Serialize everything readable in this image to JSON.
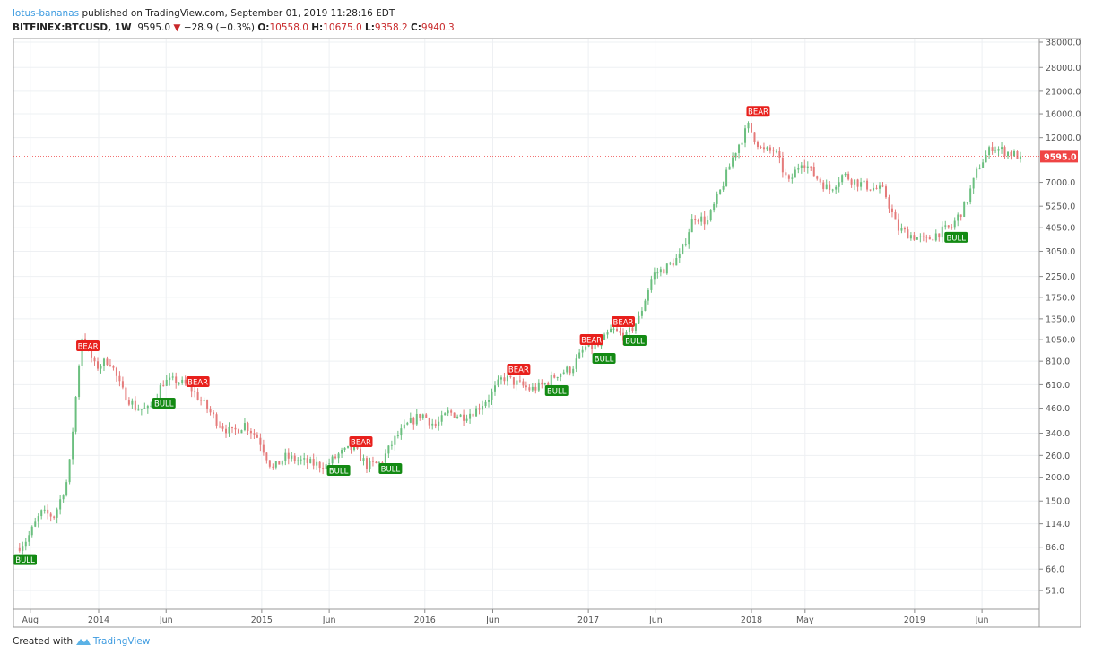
{
  "header": {
    "author": "lotus-bananas",
    "published_text": "published on TradingView.com, September 01, 2019 11:28:16 EDT",
    "symbol": "BITFINEX:BTCUSD, 1W",
    "last": "9595.0",
    "change": "−28.9 (−0.3%)",
    "o_label": "O:",
    "o": "10558.0",
    "h_label": "H:",
    "h": "10675.0",
    "l_label": "L:",
    "l": "9358.2",
    "c_label": "C:",
    "c": "9940.3",
    "down_color": "#c8282a"
  },
  "footer": {
    "created_with": "Created with",
    "brand": "TradingView"
  },
  "chart_data": {
    "type": "candlestick",
    "interval": "weekly",
    "y_scale": "log",
    "ylim": [
      45,
      40000
    ],
    "grid": true,
    "y_ticks": [
      "38000.0",
      "28000.0",
      "21000.0",
      "16000.0",
      "12000.0",
      "7000.0",
      "5250.0",
      "4050.0",
      "3050.0",
      "2250.0",
      "1750.0",
      "1350.0",
      "1050.0",
      "810.0",
      "610.0",
      "460.0",
      "340.0",
      "260.0",
      "200.0",
      "150.0",
      "114.0",
      "86.0",
      "66.0",
      "51.0"
    ],
    "x_ticks": [
      {
        "label": "Aug",
        "date": "2013-08-01"
      },
      {
        "label": "2014",
        "date": "2014-01-01"
      },
      {
        "label": "Jun",
        "date": "2014-06-01"
      },
      {
        "label": "2015",
        "date": "2015-01-01"
      },
      {
        "label": "Jun",
        "date": "2015-06-01"
      },
      {
        "label": "2016",
        "date": "2016-01-01"
      },
      {
        "label": "Jun",
        "date": "2016-06-01"
      },
      {
        "label": "2017",
        "date": "2017-01-01"
      },
      {
        "label": "Jun",
        "date": "2017-06-01"
      },
      {
        "label": "2018",
        "date": "2018-01-01"
      },
      {
        "label": "May",
        "date": "2018-05-01"
      },
      {
        "label": "2019",
        "date": "2019-01-01"
      },
      {
        "label": "Jun",
        "date": "2019-06-01"
      }
    ],
    "last_price": 9595.0,
    "last_price_label": "9595.0",
    "colors": {
      "up": "#6bbf7f",
      "down": "#e57b7b",
      "bull": "#138a13",
      "bear": "#e8201c",
      "last": "#ef4444"
    },
    "monthly_closes": [
      [
        "2013-07",
        95
      ],
      [
        "2013-08",
        130
      ],
      [
        "2013-09",
        125
      ],
      [
        "2013-10",
        200
      ],
      [
        "2013-11",
        1100
      ],
      [
        "2013-12",
        750
      ],
      [
        "2014-01",
        830
      ],
      [
        "2014-02",
        570
      ],
      [
        "2014-03",
        460
      ],
      [
        "2014-04",
        450
      ],
      [
        "2014-05",
        630
      ],
      [
        "2014-06",
        640
      ],
      [
        "2014-07",
        590
      ],
      [
        "2014-08",
        480
      ],
      [
        "2014-09",
        390
      ],
      [
        "2014-10",
        340
      ],
      [
        "2014-11",
        380
      ],
      [
        "2014-12",
        320
      ],
      [
        "2015-01",
        220
      ],
      [
        "2015-02",
        255
      ],
      [
        "2015-03",
        245
      ],
      [
        "2015-04",
        235
      ],
      [
        "2015-05",
        230
      ],
      [
        "2015-06",
        265
      ],
      [
        "2015-07",
        285
      ],
      [
        "2015-08",
        230
      ],
      [
        "2015-09",
        236
      ],
      [
        "2015-10",
        315
      ],
      [
        "2015-11",
        378
      ],
      [
        "2015-12",
        430
      ],
      [
        "2016-01",
        370
      ],
      [
        "2016-02",
        437
      ],
      [
        "2016-03",
        416
      ],
      [
        "2016-04",
        450
      ],
      [
        "2016-05",
        530
      ],
      [
        "2016-06",
        670
      ],
      [
        "2016-07",
        620
      ],
      [
        "2016-08",
        575
      ],
      [
        "2016-09",
        610
      ],
      [
        "2016-10",
        700
      ],
      [
        "2016-11",
        740
      ],
      [
        "2016-12",
        960
      ],
      [
        "2017-01",
        970
      ],
      [
        "2017-02",
        1190
      ],
      [
        "2017-03",
        1080
      ],
      [
        "2017-04",
        1350
      ],
      [
        "2017-05",
        2300
      ],
      [
        "2017-06",
        2500
      ],
      [
        "2017-07",
        2870
      ],
      [
        "2017-08",
        4700
      ],
      [
        "2017-09",
        4340
      ],
      [
        "2017-10",
        6450
      ],
      [
        "2017-11",
        10000
      ],
      [
        "2017-12",
        13800
      ],
      [
        "2018-01",
        10200
      ],
      [
        "2018-02",
        10300
      ],
      [
        "2018-03",
        6900
      ],
      [
        "2018-04",
        9200
      ],
      [
        "2018-05",
        7500
      ],
      [
        "2018-06",
        6400
      ],
      [
        "2018-07",
        7700
      ],
      [
        "2018-08",
        7000
      ],
      [
        "2018-09",
        6600
      ],
      [
        "2018-10",
        6300
      ],
      [
        "2018-11",
        4000
      ],
      [
        "2018-12",
        3700
      ],
      [
        "2019-01",
        3450
      ],
      [
        "2019-02",
        3800
      ],
      [
        "2019-03",
        4100
      ],
      [
        "2019-04",
        5300
      ],
      [
        "2019-05",
        8500
      ],
      [
        "2019-06",
        10800
      ],
      [
        "2019-07",
        10100
      ],
      [
        "2019-08",
        9595
      ]
    ],
    "signals": [
      {
        "type": "BULL",
        "date": "2013-07-10",
        "price": 74
      },
      {
        "type": "BEAR",
        "date": "2013-12-08",
        "price": 975
      },
      {
        "type": "BULL",
        "date": "2014-05-27",
        "price": 488
      },
      {
        "type": "BEAR",
        "date": "2014-08-11",
        "price": 633
      },
      {
        "type": "BULL",
        "date": "2015-06-22",
        "price": 217
      },
      {
        "type": "BEAR",
        "date": "2015-08-11",
        "price": 307
      },
      {
        "type": "BULL",
        "date": "2015-10-16",
        "price": 222
      },
      {
        "type": "BEAR",
        "date": "2016-07-29",
        "price": 736
      },
      {
        "type": "BULL",
        "date": "2016-10-22",
        "price": 568
      },
      {
        "type": "BEAR",
        "date": "2017-01-08",
        "price": 1052
      },
      {
        "type": "BULL",
        "date": "2017-02-05",
        "price": 838
      },
      {
        "type": "BEAR",
        "date": "2017-03-20",
        "price": 1305
      },
      {
        "type": "BULL",
        "date": "2017-04-15",
        "price": 1040
      },
      {
        "type": "BEAR",
        "date": "2018-01-16",
        "price": 16500
      },
      {
        "type": "BULL",
        "date": "2019-04-04",
        "price": 3610
      }
    ]
  }
}
